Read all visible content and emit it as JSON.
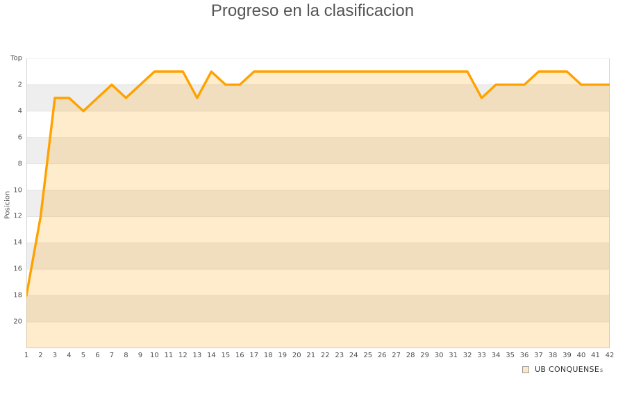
{
  "chart": {
    "title": "Progreso en la clasificacion",
    "y_axis": {
      "title": "Posicion"
    },
    "legend": {
      "label": "UB CONQUENSE"
    },
    "watermark": "s",
    "colors": {
      "line": "#ffa200",
      "area_fill": "rgba(255,162,0,0.2)",
      "band_gray": "#eeeeee",
      "band_white": "#ffffff",
      "gridline": "#e4e4e4",
      "axis_line": "#d4d4d4",
      "tick_text": "#555555",
      "title_text": "#555555"
    }
  },
  "chart_data": {
    "type": "area",
    "title": "Progreso en la clasificacion",
    "xlabel": "",
    "ylabel": "Posicion",
    "x": [
      1,
      2,
      3,
      4,
      5,
      6,
      7,
      8,
      9,
      10,
      11,
      12,
      13,
      14,
      15,
      16,
      17,
      18,
      19,
      20,
      21,
      22,
      23,
      24,
      25,
      26,
      27,
      28,
      29,
      30,
      31,
      32,
      33,
      34,
      35,
      36,
      37,
      38,
      39,
      40,
      41,
      42
    ],
    "series": [
      {
        "name": "UB CONQUENSE",
        "values": [
          18,
          12,
          3,
          3,
          4,
          3,
          2,
          3,
          2,
          1,
          1,
          1,
          3,
          1,
          2,
          2,
          1,
          1,
          1,
          1,
          1,
          1,
          1,
          1,
          1,
          1,
          1,
          1,
          1,
          1,
          1,
          1,
          3,
          2,
          2,
          2,
          1,
          1,
          1,
          2,
          2,
          2
        ]
      }
    ],
    "y_axis_reversed": true,
    "ylim": [
      0,
      22
    ],
    "y_tick_step": 2,
    "y_ticks": [
      "Top",
      "2",
      "4",
      "6",
      "8",
      "10",
      "12",
      "14",
      "16",
      "18",
      "20"
    ],
    "grid": "horizontal-bands",
    "legend_position": "bottom-right"
  }
}
